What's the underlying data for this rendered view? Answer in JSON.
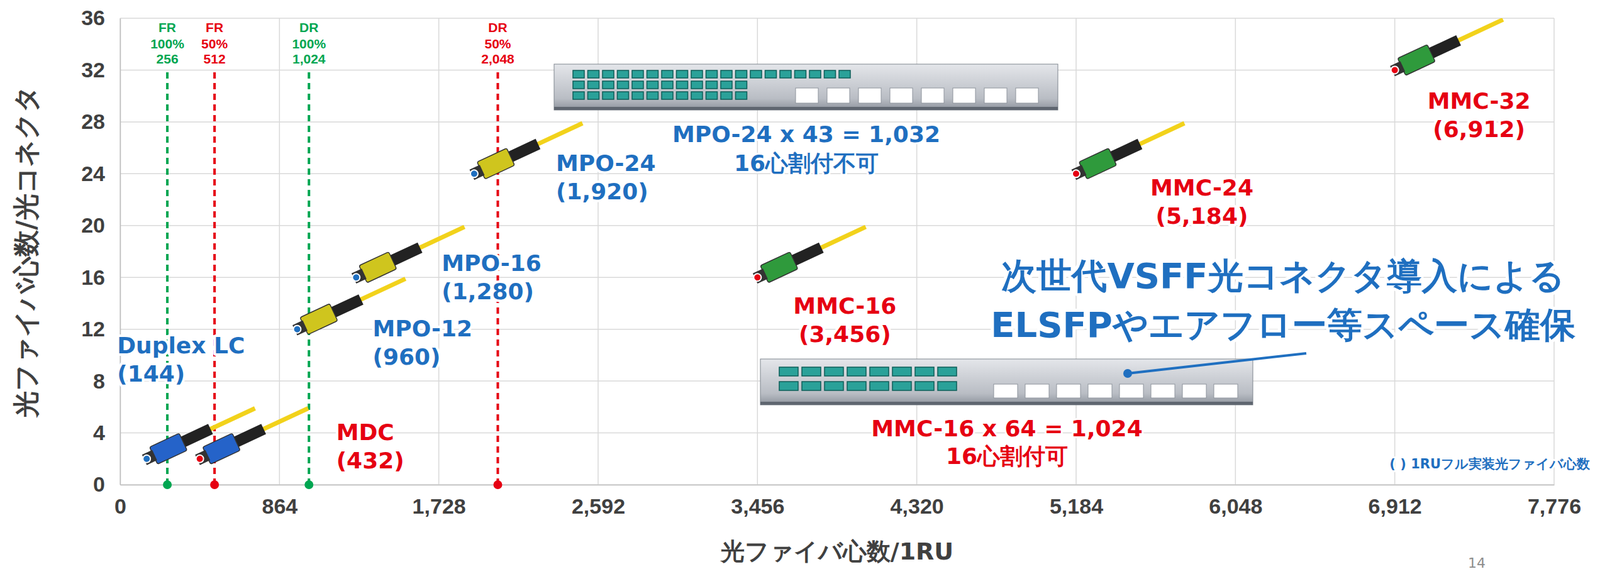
{
  "chart_data": {
    "type": "scatter",
    "x_label": "光ファイバ心数/1RU",
    "y_label": "光ファイバ心数/光コネクタ",
    "xlim": [
      0,
      7776
    ],
    "xticks": [
      0,
      864,
      {
        "value": 1728,
        "label": "1,728"
      },
      {
        "value": 2592,
        "label": "2,592"
      },
      {
        "value": 3456,
        "label": "3,456"
      },
      {
        "value": 4320,
        "label": "4,320"
      },
      {
        "value": 5184,
        "label": "5,184"
      },
      {
        "value": 6048,
        "label": "6,048"
      },
      {
        "value": 6912,
        "label": "6,912"
      },
      {
        "value": 7776,
        "label": "7,776"
      }
    ],
    "ylim": [
      0,
      36
    ],
    "yticks": [
      0,
      4,
      8,
      12,
      16,
      20,
      24,
      28,
      32,
      36
    ],
    "grid": true,
    "series": [
      {
        "name": "Duplex LC",
        "color": "#1f6fc0",
        "x": [
          144
        ],
        "values": [
          2
        ],
        "x_labels": [
          "(144)"
        ]
      },
      {
        "name": "MDC",
        "color": "#e60012",
        "x": [
          432
        ],
        "values": [
          2
        ],
        "x_labels": [
          "(432)"
        ]
      },
      {
        "name": "MPO-12",
        "color": "#1f6fc0",
        "x": [
          960
        ],
        "values": [
          12
        ],
        "x_labels": [
          "(960)"
        ]
      },
      {
        "name": "MPO-16",
        "color": "#1f6fc0",
        "x": [
          1280
        ],
        "values": [
          16
        ],
        "x_labels": [
          "(1,280)"
        ]
      },
      {
        "name": "MPO-24",
        "color": "#1f6fc0",
        "x": [
          1920
        ],
        "values": [
          24
        ],
        "x_labels": [
          "(1,920)"
        ]
      },
      {
        "name": "MMC-16",
        "color": "#e60012",
        "x": [
          3456
        ],
        "values": [
          16
        ],
        "x_labels": [
          "(3,456)"
        ]
      },
      {
        "name": "MMC-24",
        "color": "#e60012",
        "x": [
          5184
        ],
        "values": [
          24
        ],
        "x_labels": [
          "(5,184)"
        ]
      },
      {
        "name": "MMC-32",
        "color": "#e60012",
        "x": [
          6912
        ],
        "values": [
          32
        ],
        "x_labels": [
          "(6,912)"
        ]
      }
    ],
    "reference_lines": [
      {
        "x": 256,
        "labels": [
          "FR",
          "100%",
          "256"
        ],
        "color": "#00a651"
      },
      {
        "x": 512,
        "labels": [
          "FR",
          "50%",
          "512"
        ],
        "color": "#e60012"
      },
      {
        "x": 1024,
        "labels": [
          "DR",
          "100%",
          "1,024"
        ],
        "color": "#00a651"
      },
      {
        "x": 2048,
        "labels": [
          "DR",
          "50%",
          "2,048"
        ],
        "color": "#e60012"
      }
    ],
    "annotations": [
      {
        "lines": [
          "MPO-24 x 43 = 1,032",
          "16心割付不可"
        ],
        "color": "#1f6fc0"
      },
      {
        "lines": [
          "MMC-16 x 64 = 1,024",
          "16心割付可"
        ],
        "color": "#e60012"
      },
      {
        "lines": [
          "次世代VSFF光コネクタ導入による",
          "ELSFPやエアフロー等スペース確保"
        ],
        "color": "#1f6fc0"
      },
      {
        "lines": [
          "( ) 1RUフル実装光ファイバ心数"
        ],
        "color": "#1f6fc0"
      }
    ],
    "page_number": "14"
  }
}
